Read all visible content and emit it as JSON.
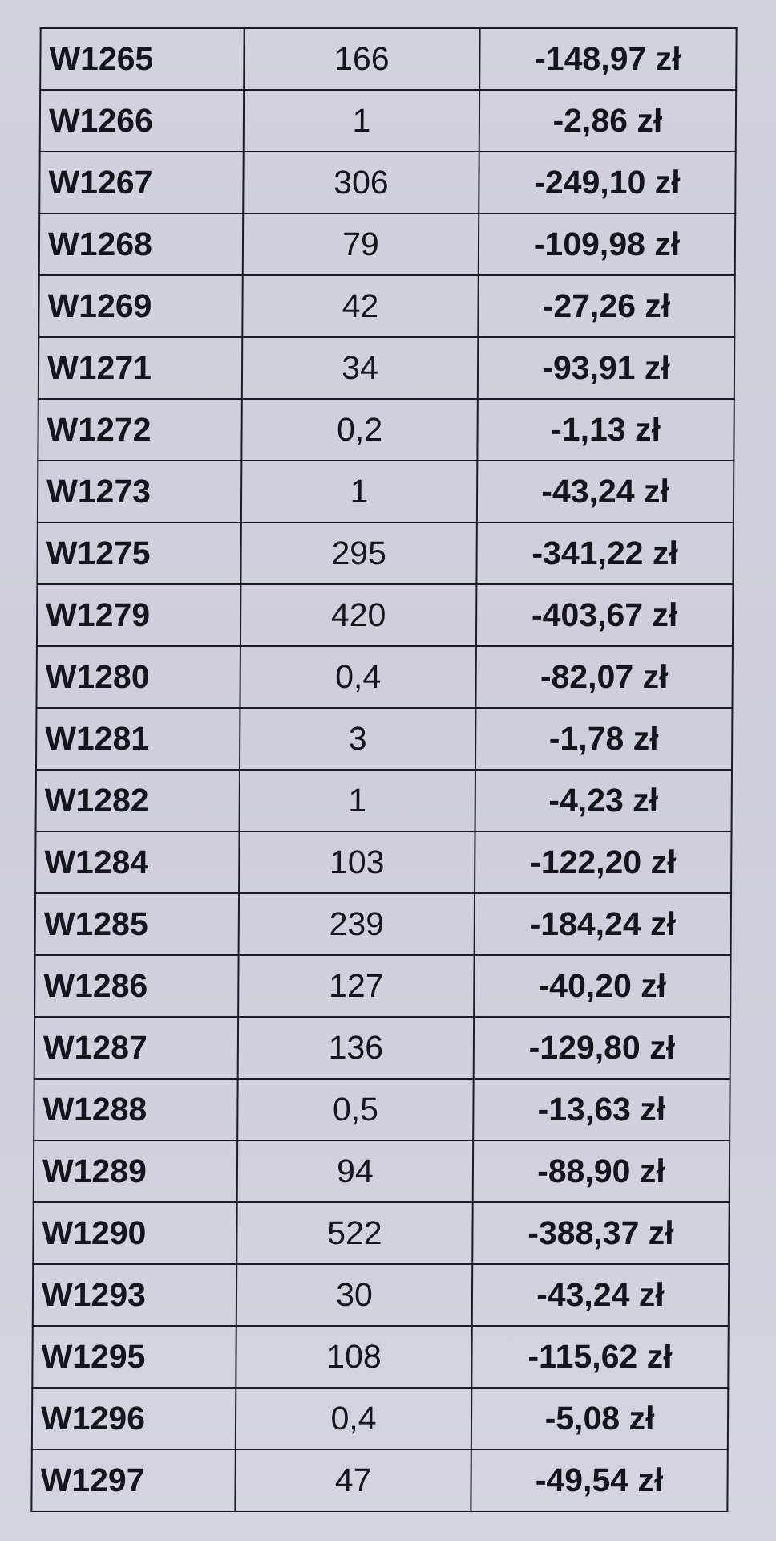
{
  "rows": [
    {
      "code": "W1265",
      "qty": "166",
      "value": "-148,97 zł"
    },
    {
      "code": "W1266",
      "qty": "1",
      "value": "-2,86 zł"
    },
    {
      "code": "W1267",
      "qty": "306",
      "value": "-249,10 zł"
    },
    {
      "code": "W1268",
      "qty": "79",
      "value": "-109,98 zł"
    },
    {
      "code": "W1269",
      "qty": "42",
      "value": "-27,26 zł"
    },
    {
      "code": "W1271",
      "qty": "34",
      "value": "-93,91 zł"
    },
    {
      "code": "W1272",
      "qty": "0,2",
      "value": "-1,13 zł"
    },
    {
      "code": "W1273",
      "qty": "1",
      "value": "-43,24 zł"
    },
    {
      "code": "W1275",
      "qty": "295",
      "value": "-341,22 zł"
    },
    {
      "code": "W1279",
      "qty": "420",
      "value": "-403,67 zł"
    },
    {
      "code": "W1280",
      "qty": "0,4",
      "value": "-82,07 zł"
    },
    {
      "code": "W1281",
      "qty": "3",
      "value": "-1,78 zł"
    },
    {
      "code": "W1282",
      "qty": "1",
      "value": "-4,23 zł"
    },
    {
      "code": "W1284",
      "qty": "103",
      "value": "-122,20 zł"
    },
    {
      "code": "W1285",
      "qty": "239",
      "value": "-184,24 zł"
    },
    {
      "code": "W1286",
      "qty": "127",
      "value": "-40,20 zł"
    },
    {
      "code": "W1287",
      "qty": "136",
      "value": "-129,80 zł"
    },
    {
      "code": "W1288",
      "qty": "0,5",
      "value": "-13,63 zł"
    },
    {
      "code": "W1289",
      "qty": "94",
      "value": "-88,90 zł"
    },
    {
      "code": "W1290",
      "qty": "522",
      "value": "-388,37 zł"
    },
    {
      "code": "W1293",
      "qty": "30",
      "value": "-43,24 zł"
    },
    {
      "code": "W1295",
      "qty": "108",
      "value": "-115,62 zł"
    },
    {
      "code": "W1296",
      "qty": "0,4",
      "value": "-5,08 zł"
    },
    {
      "code": "W1297",
      "qty": "47",
      "value": "-49,54 zł"
    }
  ]
}
